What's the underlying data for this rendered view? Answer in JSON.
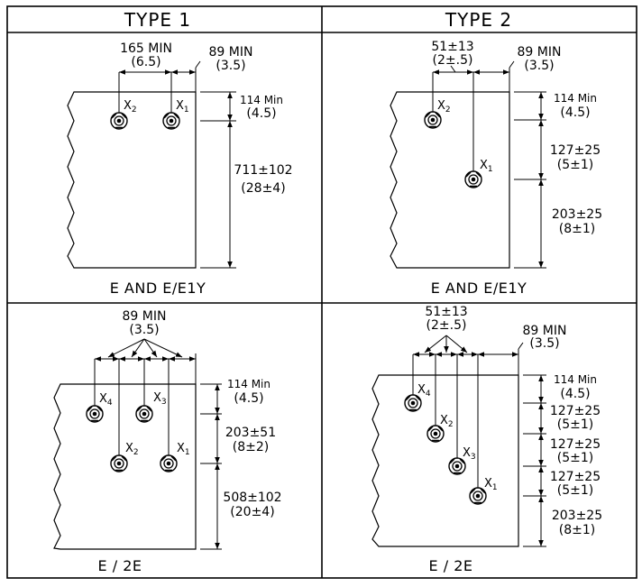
{
  "headers": {
    "type1": "TYPE 1",
    "type2": "TYPE 2"
  },
  "panels": {
    "tl": {
      "caption": "E AND E/E1Y",
      "dims": {
        "spacing_mm": "165 MIN",
        "spacing_in": "(6.5)",
        "edge_mm": "89 MIN",
        "edge_in": "(3.5)",
        "top_mm": "114 Min",
        "top_in": "(4.5)",
        "bottom_mm": "711±102",
        "bottom_in": "(28±4)"
      },
      "labels": [
        "X",
        "2",
        "X",
        "1"
      ]
    },
    "tr": {
      "caption": "E AND E/E1Y",
      "dims": {
        "spacing_mm": "51±13",
        "spacing_in": "(2±.5)",
        "edge_mm": "89 MIN",
        "edge_in": "(3.5)",
        "top_mm": "114 Min",
        "top_in": "(4.5)",
        "mid_mm": "127±25",
        "mid_in": "(5±1)",
        "bottom_mm": "203±25",
        "bottom_in": "(8±1)"
      },
      "labels": [
        "X",
        "2",
        "X",
        "1"
      ]
    },
    "bl": {
      "caption": "E / 2E",
      "dims": {
        "spacing_mm": "89 MIN",
        "spacing_in": "(3.5)",
        "top_mm": "114 Min",
        "top_in": "(4.5)",
        "mid_mm": "203±51",
        "mid_in": "(8±2)",
        "bottom_mm": "508±102",
        "bottom_in": "(20±4)"
      },
      "labels": [
        "X",
        "4",
        "X",
        "3",
        "X",
        "2",
        "X",
        "1"
      ]
    },
    "br": {
      "caption": "E / 2E",
      "dims": {
        "spacing_mm": "51±13",
        "spacing_in": "(2±.5)",
        "edge_mm": "89 MIN",
        "edge_in": "(3.5)",
        "top_mm": "114 Min",
        "top_in": "(4.5)",
        "s1_mm": "127±25",
        "s1_in": "(5±1)",
        "s2_mm": "127±25",
        "s2_in": "(5±1)",
        "s3_mm": "127±25",
        "s3_in": "(5±1)",
        "bottom_mm": "203±25",
        "bottom_in": "(8±1)"
      },
      "labels": [
        "X",
        "4",
        "X",
        "2",
        "X",
        "3",
        "X",
        "1"
      ]
    }
  }
}
